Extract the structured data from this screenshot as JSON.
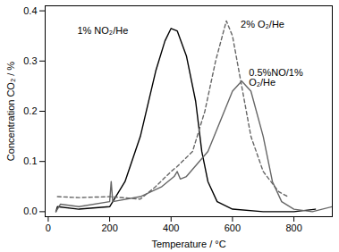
{
  "chart_data": {
    "type": "line",
    "x_label": "Temperature / °C",
    "y_label": "Concentration CO₂ / %",
    "xlim": [
      -10,
      925
    ],
    "ylim": [
      -0.01,
      0.41
    ],
    "xticks": [
      0,
      200,
      400,
      600,
      800
    ],
    "yticks": [
      {
        "value": 0,
        "label": "0.0"
      },
      {
        "value": 0.1,
        "label": "0.1"
      },
      {
        "value": 0.2,
        "label": "0.2"
      },
      {
        "value": 0.3,
        "label": "0.3"
      },
      {
        "value": 0.4,
        "label": "0.4"
      }
    ],
    "grid": false,
    "series": [
      {
        "name": "1% NO₂/He",
        "color": "#000000",
        "line_style": "solid",
        "x": [
          25,
          30,
          100,
          200,
          250,
          300,
          350,
          380,
          400,
          420,
          450,
          480,
          500,
          520,
          550,
          600,
          700,
          800,
          870
        ],
        "values": [
          0.0,
          0.01,
          0.005,
          0.01,
          0.06,
          0.15,
          0.28,
          0.34,
          0.365,
          0.36,
          0.31,
          0.22,
          0.12,
          0.06,
          0.02,
          0.005,
          0.0,
          0.0,
          0.005
        ]
      },
      {
        "name": "2% O₂/He",
        "color": "#666666",
        "line_style": "dashed",
        "x": [
          30,
          100,
          200,
          300,
          350,
          400,
          420,
          470,
          510,
          545,
          580,
          600,
          630,
          660,
          700,
          750,
          780
        ],
        "values": [
          0.03,
          0.028,
          0.03,
          0.025,
          0.05,
          0.08,
          0.09,
          0.12,
          0.2,
          0.3,
          0.38,
          0.35,
          0.25,
          0.15,
          0.08,
          0.04,
          0.03
        ]
      },
      {
        "name": "0.5%NO/1% O₂/He",
        "color": "#666666",
        "line_style": "solid",
        "x": [
          25,
          40,
          100,
          200,
          205,
          210,
          300,
          370,
          410,
          420,
          430,
          450,
          520,
          560,
          600,
          630,
          660,
          700,
          730,
          760,
          800,
          860,
          925
        ],
        "values": [
          0.0,
          0.015,
          0.01,
          0.02,
          0.06,
          0.02,
          0.03,
          0.05,
          0.07,
          0.08,
          0.065,
          0.07,
          0.12,
          0.18,
          0.24,
          0.26,
          0.24,
          0.15,
          0.06,
          0.02,
          0.005,
          0.0,
          0.01
        ]
      }
    ]
  }
}
